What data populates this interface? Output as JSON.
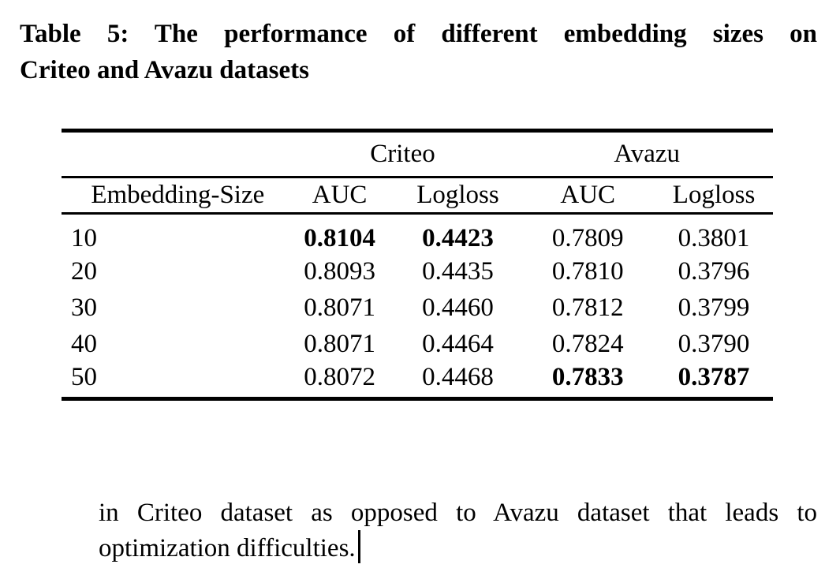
{
  "caption": {
    "line1": "Table 5: The performance of different embedding sizes on",
    "line2": "Criteo and Avazu datasets"
  },
  "table": {
    "group_headers": {
      "criteo": "Criteo",
      "avazu": "Avazu"
    },
    "column_headers": [
      "Embedding-Size",
      "AUC",
      "Logloss",
      "AUC",
      "Logloss"
    ],
    "cell_names": [
      "embedding-size-cell",
      "criteo-auc-cell",
      "criteo-logloss-cell",
      "avazu-auc-cell",
      "avazu-logloss-cell"
    ],
    "rows": [
      {
        "cells": [
          {
            "v": "10"
          },
          {
            "v": "0.8104",
            "b": true
          },
          {
            "v": "0.4423",
            "b": true
          },
          {
            "v": "0.7809"
          },
          {
            "v": "0.3801"
          }
        ]
      },
      {
        "cells": [
          {
            "v": "20"
          },
          {
            "v": "0.8093"
          },
          {
            "v": "0.4435"
          },
          {
            "v": "0.7810"
          },
          {
            "v": "0.3796"
          }
        ]
      },
      {
        "cells": [
          {
            "v": "30"
          },
          {
            "v": "0.8071"
          },
          {
            "v": "0.4460"
          },
          {
            "v": "0.7812"
          },
          {
            "v": "0.3799"
          }
        ]
      },
      {
        "cells": [
          {
            "v": "40"
          },
          {
            "v": "0.8071"
          },
          {
            "v": "0.4464"
          },
          {
            "v": "0.7824"
          },
          {
            "v": "0.3790"
          }
        ]
      },
      {
        "cells": [
          {
            "v": "50"
          },
          {
            "v": "0.8072"
          },
          {
            "v": "0.4468"
          },
          {
            "v": "0.7833",
            "b": true
          },
          {
            "v": "0.3787",
            "b": true
          }
        ]
      }
    ]
  },
  "paragraph": {
    "line1": "in Criteo dataset as opposed to Avazu dataset that leads to",
    "line2": "optimization difficulties."
  },
  "colors": {
    "text": "#000000",
    "background": "#ffffff"
  }
}
